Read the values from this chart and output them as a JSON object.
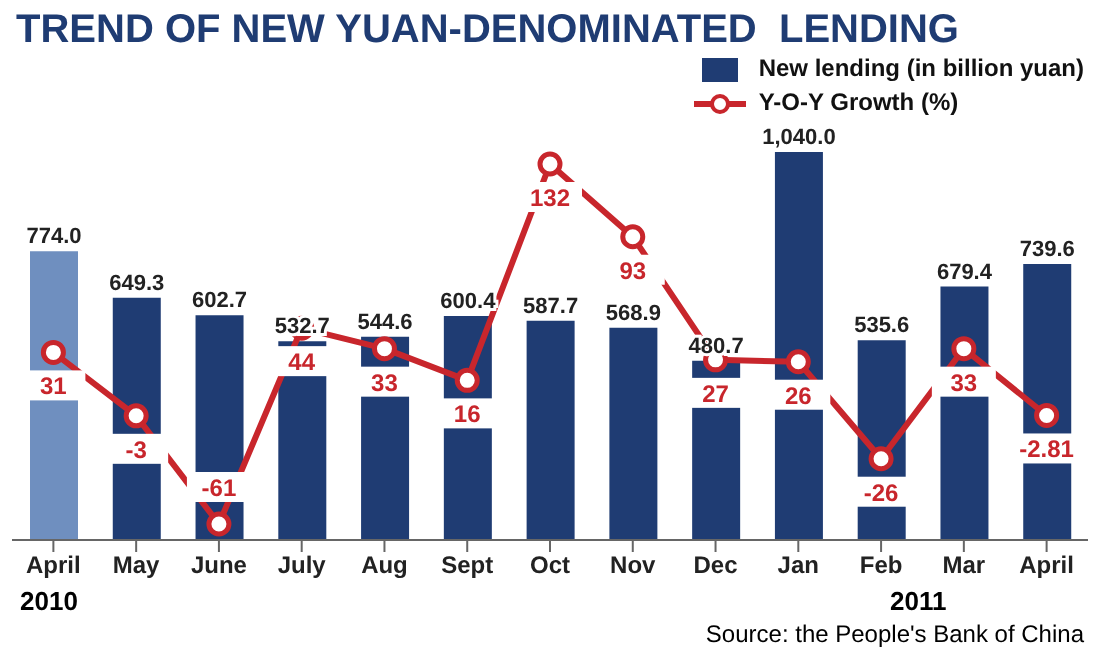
{
  "chart_data": {
    "type": "bar",
    "title": "TREND OF NEW YUAN-DENOMINATED  LENDING",
    "categories": [
      "April",
      "May",
      "June",
      "July",
      "Aug",
      "Sept",
      "Oct",
      "Nov",
      "Dec",
      "Jan",
      "Feb",
      "Mar",
      "April"
    ],
    "series": [
      {
        "name": "New lending (in billion yuan)",
        "color": "#1f3c73",
        "colors": [
          "#6f8fbf",
          "#1f3c73",
          "#1f3c73",
          "#1f3c73",
          "#1f3c73",
          "#1f3c73",
          "#1f3c73",
          "#1f3c73",
          "#1f3c73",
          "#1f3c73",
          "#1f3c73",
          "#1f3c73",
          "#1f3c73"
        ],
        "values": [
          774.0,
          649.3,
          602.7,
          532.7,
          544.6,
          600.4,
          587.7,
          568.9,
          480.7,
          1040.0,
          535.6,
          679.4,
          739.6
        ],
        "value_labels": [
          "774.0",
          "649.3",
          "602.7",
          "532.7",
          "544.6",
          "600.4",
          "587.7",
          "568.9",
          "480.7",
          "1,040.0",
          "535.6",
          "679.4",
          "739.6"
        ]
      },
      {
        "name": "Y-O-Y Growth (%)",
        "type": "line",
        "axis": "y2",
        "color": "#c8262c",
        "marker": "circle",
        "values": [
          31,
          -3,
          -61,
          44,
          33,
          16,
          132,
          93,
          27,
          26,
          -26,
          33,
          -2.81
        ]
      }
    ],
    "tick_labels": "x",
    "data_labels": true,
    "legend": "top right",
    "annotations": [
      "2010",
      "2011",
      "Source: the People's Bank of China"
    ]
  }
}
